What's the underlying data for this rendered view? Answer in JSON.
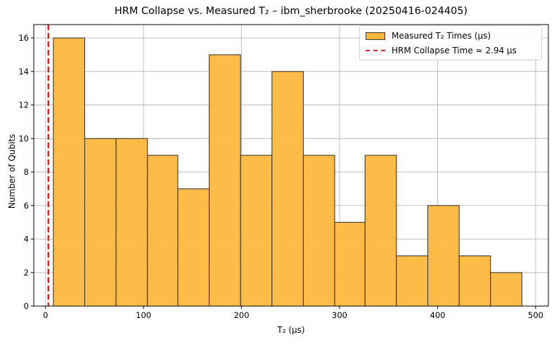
{
  "chart_data": {
    "type": "bar",
    "title": "HRM Collapse vs. Measured T₂ – ibm_sherbrooke (20250416-024405)",
    "xlabel": "T₂ (µs)",
    "ylabel": "Number of Qubits",
    "xlim": [
      -12,
      513
    ],
    "ylim": [
      0,
      16.8
    ],
    "xticks": [
      0,
      100,
      200,
      300,
      400,
      500
    ],
    "yticks": [
      0,
      2,
      4,
      6,
      8,
      10,
      12,
      14,
      16
    ],
    "grid": true,
    "legend_position": "top-right",
    "series": [
      {
        "name": "Measured T₂ Times (µs)",
        "color": "#fdb73e",
        "bin_edges": [
          8,
          40,
          72,
          104,
          135,
          167,
          199,
          231,
          263,
          295,
          326,
          358,
          390,
          422,
          454,
          486
        ],
        "counts": [
          16,
          10,
          10,
          9,
          7,
          15,
          9,
          14,
          9,
          5,
          9,
          3,
          6,
          3,
          2
        ]
      }
    ],
    "reference_line": {
      "name": "HRM Collapse Time ≈ 2.94 µs",
      "x": 2.94,
      "color": "#e0201c"
    }
  }
}
